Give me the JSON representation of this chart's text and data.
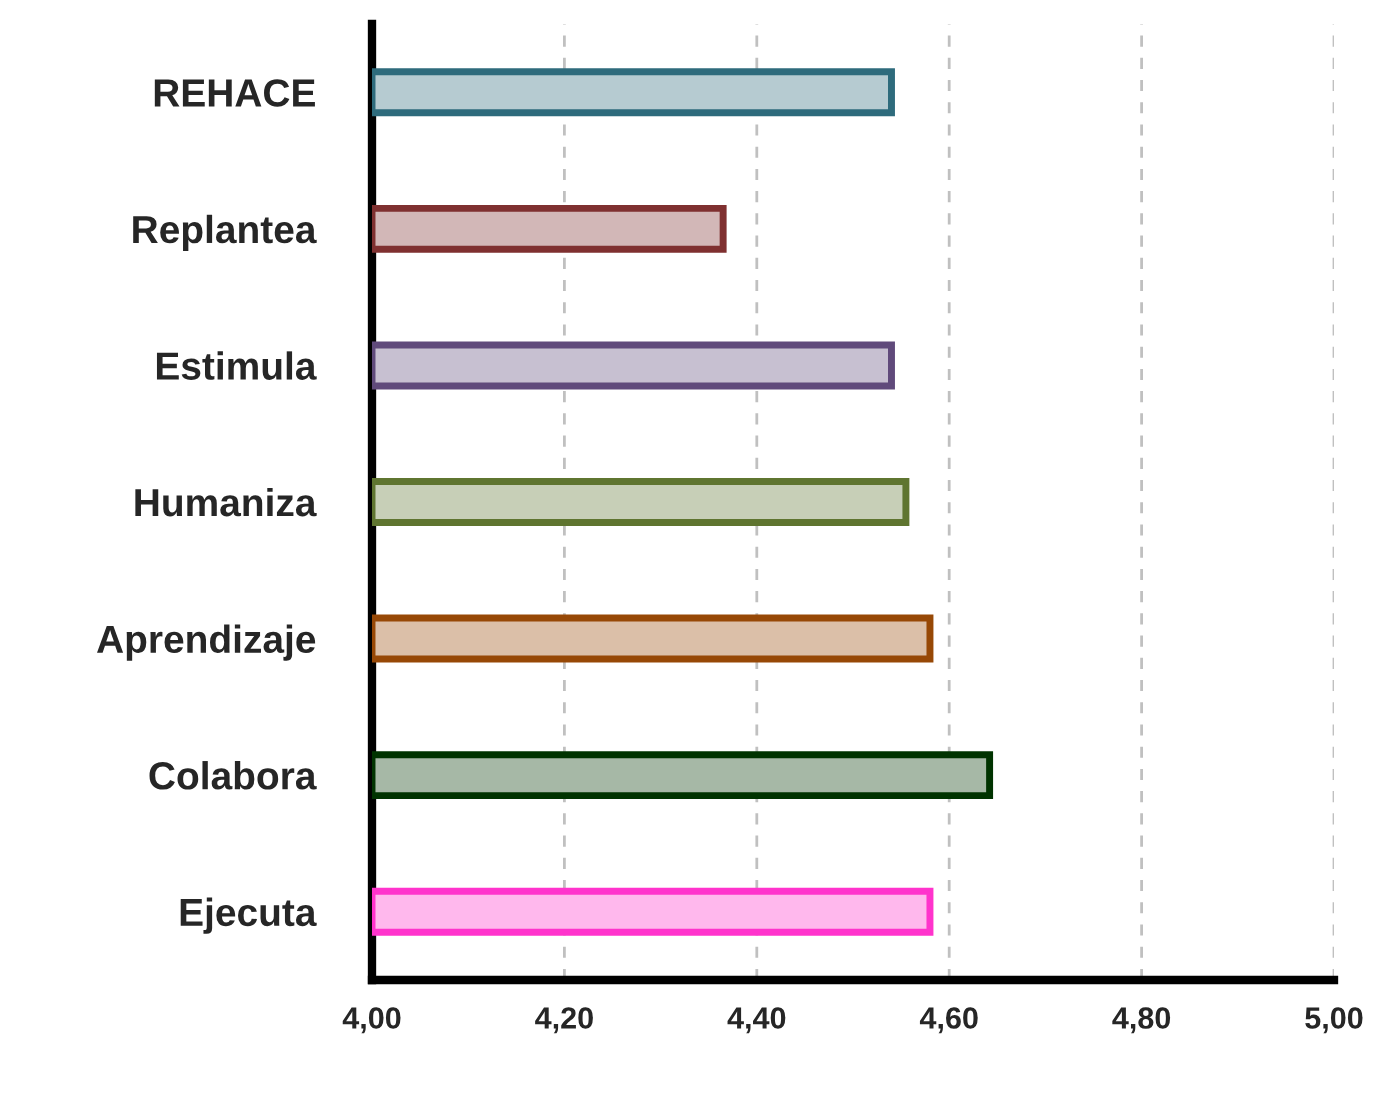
{
  "chart_data": {
    "type": "bar",
    "orientation": "horizontal",
    "categories": [
      "REHACE",
      "Replantea",
      "Estimula",
      "Humaniza",
      "Aprendizaje",
      "Colabora",
      "Ejecuta"
    ],
    "values": [
      4.54,
      4.365,
      4.54,
      4.555,
      4.58,
      4.642,
      4.58
    ],
    "colors": [
      "#2e6b7c",
      "#7f3030",
      "#604a7b",
      "#5f7530",
      "#974806",
      "#003300",
      "#ff33cc"
    ],
    "xlim": [
      4.0,
      5.0
    ],
    "xticks": [
      {
        "value": 4.0,
        "label": "4,00"
      },
      {
        "value": 4.2,
        "label": "4,20"
      },
      {
        "value": 4.4,
        "label": "4,40"
      },
      {
        "value": 4.6,
        "label": "4,60"
      },
      {
        "value": 4.8,
        "label": "4,80"
      },
      {
        "value": 5.0,
        "label": "5,00"
      }
    ],
    "grid": "x"
  }
}
